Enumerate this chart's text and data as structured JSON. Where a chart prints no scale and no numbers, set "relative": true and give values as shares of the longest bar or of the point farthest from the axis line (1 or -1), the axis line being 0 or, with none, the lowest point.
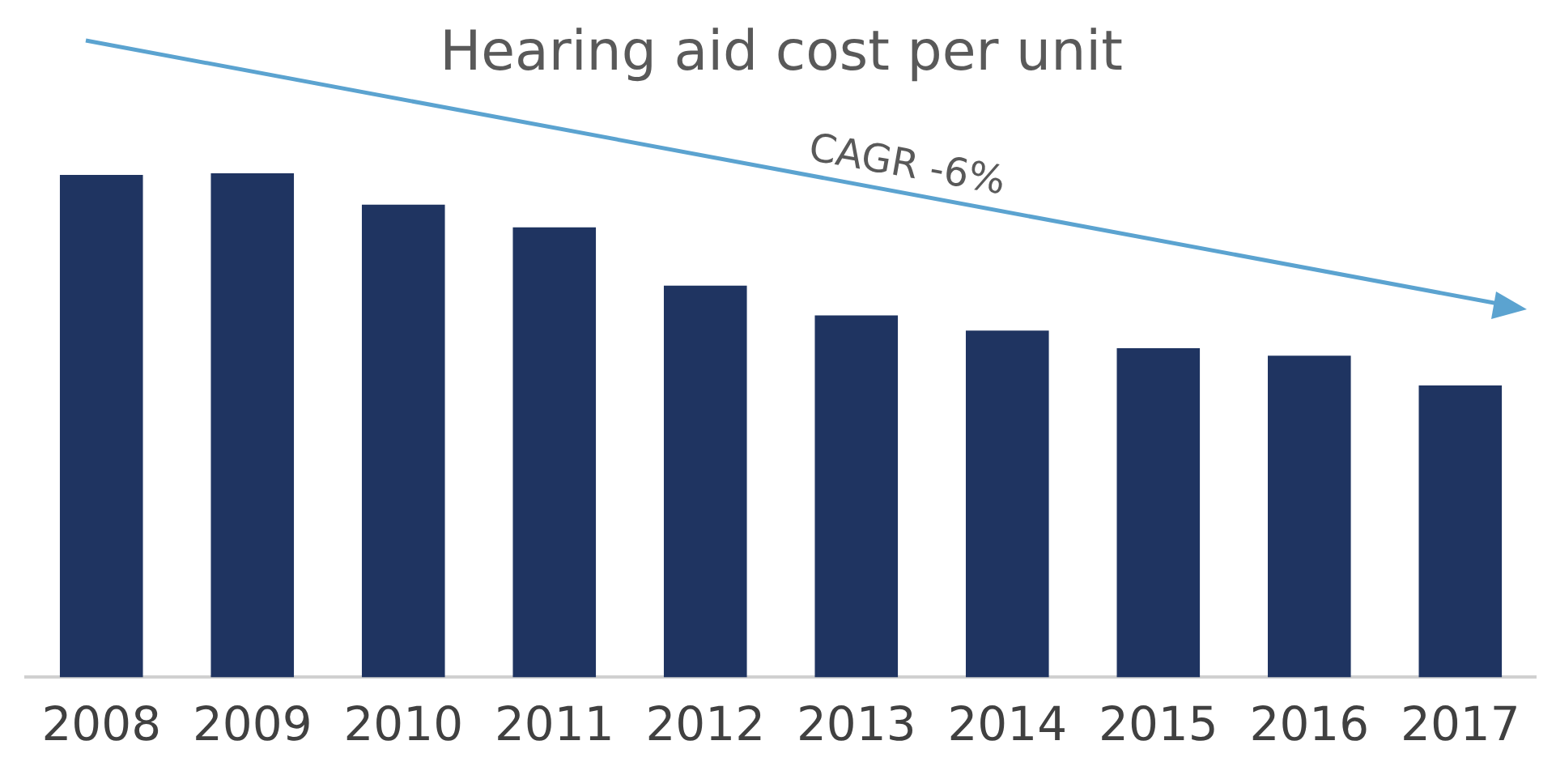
{
  "chart_data": {
    "type": "bar",
    "title": "Hearing aid cost per unit",
    "relative": true,
    "categories": [
      "2008",
      "2009",
      "2010",
      "2011",
      "2012",
      "2013",
      "2014",
      "2015",
      "2016",
      "2017"
    ],
    "values": [
      0.997,
      1,
      0.938,
      0.893,
      0.777,
      0.718,
      0.688,
      0.653,
      0.638,
      0.579
    ],
    "color": "#1f3461",
    "annotations": [
      "CAGR -6%"
    ],
    "grid": false,
    "legend": false
  }
}
